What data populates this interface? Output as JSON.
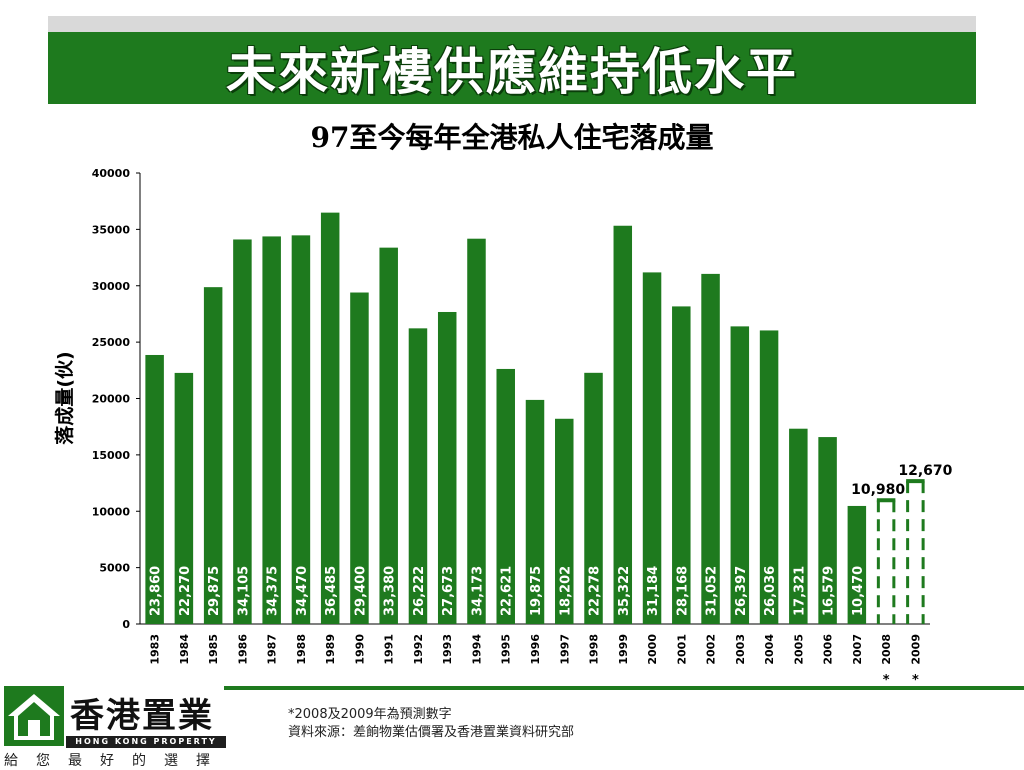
{
  "header": {
    "title": "未來新樓供應維持低水平"
  },
  "chart_data": {
    "type": "bar",
    "title": "97至今每年全港私人住宅落成量",
    "ylabel": "落成量(伙)",
    "xlabel": "",
    "ylim": [
      0,
      40000
    ],
    "yticks": [
      0,
      5000,
      10000,
      15000,
      20000,
      25000,
      30000,
      35000,
      40000
    ],
    "grid": false,
    "categories": [
      "1983",
      "1984",
      "1985",
      "1986",
      "1987",
      "1988",
      "1989",
      "1990",
      "1991",
      "1992",
      "1993",
      "1994",
      "1995",
      "1996",
      "1997",
      "1998",
      "1999",
      "2000",
      "2001",
      "2002",
      "2003",
      "2004",
      "2005",
      "2006",
      "2007",
      "2008",
      "2009"
    ],
    "values": [
      23860,
      22270,
      29875,
      34105,
      34375,
      34470,
      36485,
      29400,
      33380,
      26222,
      27673,
      34173,
      22621,
      19875,
      18202,
      22278,
      35322,
      31184,
      28168,
      31052,
      26397,
      26036,
      17321,
      16579,
      10470,
      10980,
      12670
    ],
    "value_labels": [
      "23,860",
      "22,270",
      "29,875",
      "34,105",
      "34,375",
      "34,470",
      "36,485",
      "29,400",
      "33,380",
      "26,222",
      "27,673",
      "34,173",
      "22,621",
      "19,875",
      "18,202",
      "22,278",
      "35,322",
      "31,184",
      "28,168",
      "31,052",
      "26,397",
      "26,036",
      "17,321",
      "16,579",
      "10,470",
      "10,980",
      "12,670"
    ],
    "forecast_categories": [
      "2008",
      "2009"
    ],
    "forecast_marker": "*",
    "bar_color": "#1e7a1e"
  },
  "logo": {
    "name": "香港置業",
    "english": "HONG KONG PROPERTY",
    "slogan": "給您最好的選擇",
    "icon": "house-logo-icon"
  },
  "footnote": {
    "line1": "*2008及2009年為預測數字",
    "line2": "資料來源：差餉物業估價署及香港置業資料研究部"
  }
}
